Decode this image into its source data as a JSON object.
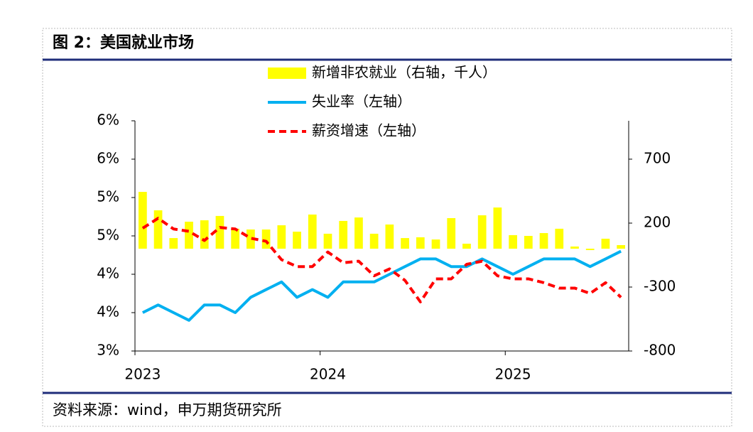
{
  "chart_data": {
    "type": "bar-line",
    "title": "图 2：美国就业市场",
    "source": "资料来源：wind，申万期货研究所",
    "categories": [
      "2023",
      null,
      null,
      null,
      null,
      null,
      null,
      null,
      null,
      null,
      null,
      null,
      "2024",
      null,
      null,
      null,
      null,
      null,
      null,
      null,
      null,
      null,
      null,
      null,
      "2025",
      null,
      null,
      null,
      null,
      null,
      null,
      null
    ],
    "series": [
      {
        "name": "新增非农就业（右轴，千人）",
        "type": "bar",
        "axis": "y2",
        "color": "#ffff00",
        "values": [
          444,
          300,
          83,
          211,
          222,
          256,
          156,
          150,
          150,
          183,
          133,
          267,
          117,
          217,
          244,
          117,
          189,
          83,
          89,
          72,
          239,
          39,
          261,
          322,
          106,
          100,
          122,
          156,
          17,
          -11,
          78,
          28
        ]
      },
      {
        "name": "失业率（左轴）",
        "type": "line",
        "axis": "y",
        "color": "#00b0f0",
        "dashed": false,
        "values": [
          3.5,
          3.6,
          3.5,
          3.4,
          3.6,
          3.6,
          3.5,
          3.7,
          3.8,
          3.9,
          3.7,
          3.8,
          3.7,
          3.9,
          3.9,
          3.9,
          4.0,
          4.1,
          4.2,
          4.2,
          4.1,
          4.1,
          4.2,
          4.1,
          4.0,
          4.1,
          4.2,
          4.2,
          4.2,
          4.1,
          4.2,
          4.3
        ]
      },
      {
        "name": "薪资增速（左轴）",
        "type": "line",
        "axis": "y",
        "color": "#ff0000",
        "dashed": true,
        "values": [
          4.6,
          4.73,
          4.59,
          4.56,
          4.44,
          4.61,
          4.59,
          4.47,
          4.43,
          4.19,
          4.1,
          4.1,
          4.29,
          4.15,
          4.17,
          3.98,
          4.07,
          3.92,
          3.64,
          3.94,
          3.94,
          4.13,
          4.17,
          3.98,
          3.94,
          3.94,
          3.89,
          3.82,
          3.82,
          3.75,
          3.89,
          3.7
        ]
      }
    ],
    "ylim": [
      3,
      6
    ],
    "yticks": [
      {
        "value": 3,
        "label": "3%"
      },
      {
        "value": 3.5,
        "label": "4%"
      },
      {
        "value": 4,
        "label": "4%"
      },
      {
        "value": 4.5,
        "label": "5%"
      },
      {
        "value": 5,
        "label": "5%"
      },
      {
        "value": 5.5,
        "label": "6%"
      },
      {
        "value": 6,
        "label": "6%"
      }
    ],
    "y2lim": [
      -800,
      1000
    ],
    "y2ticks": [
      -800,
      -300,
      200,
      700
    ],
    "legend": "top",
    "grid": false
  }
}
